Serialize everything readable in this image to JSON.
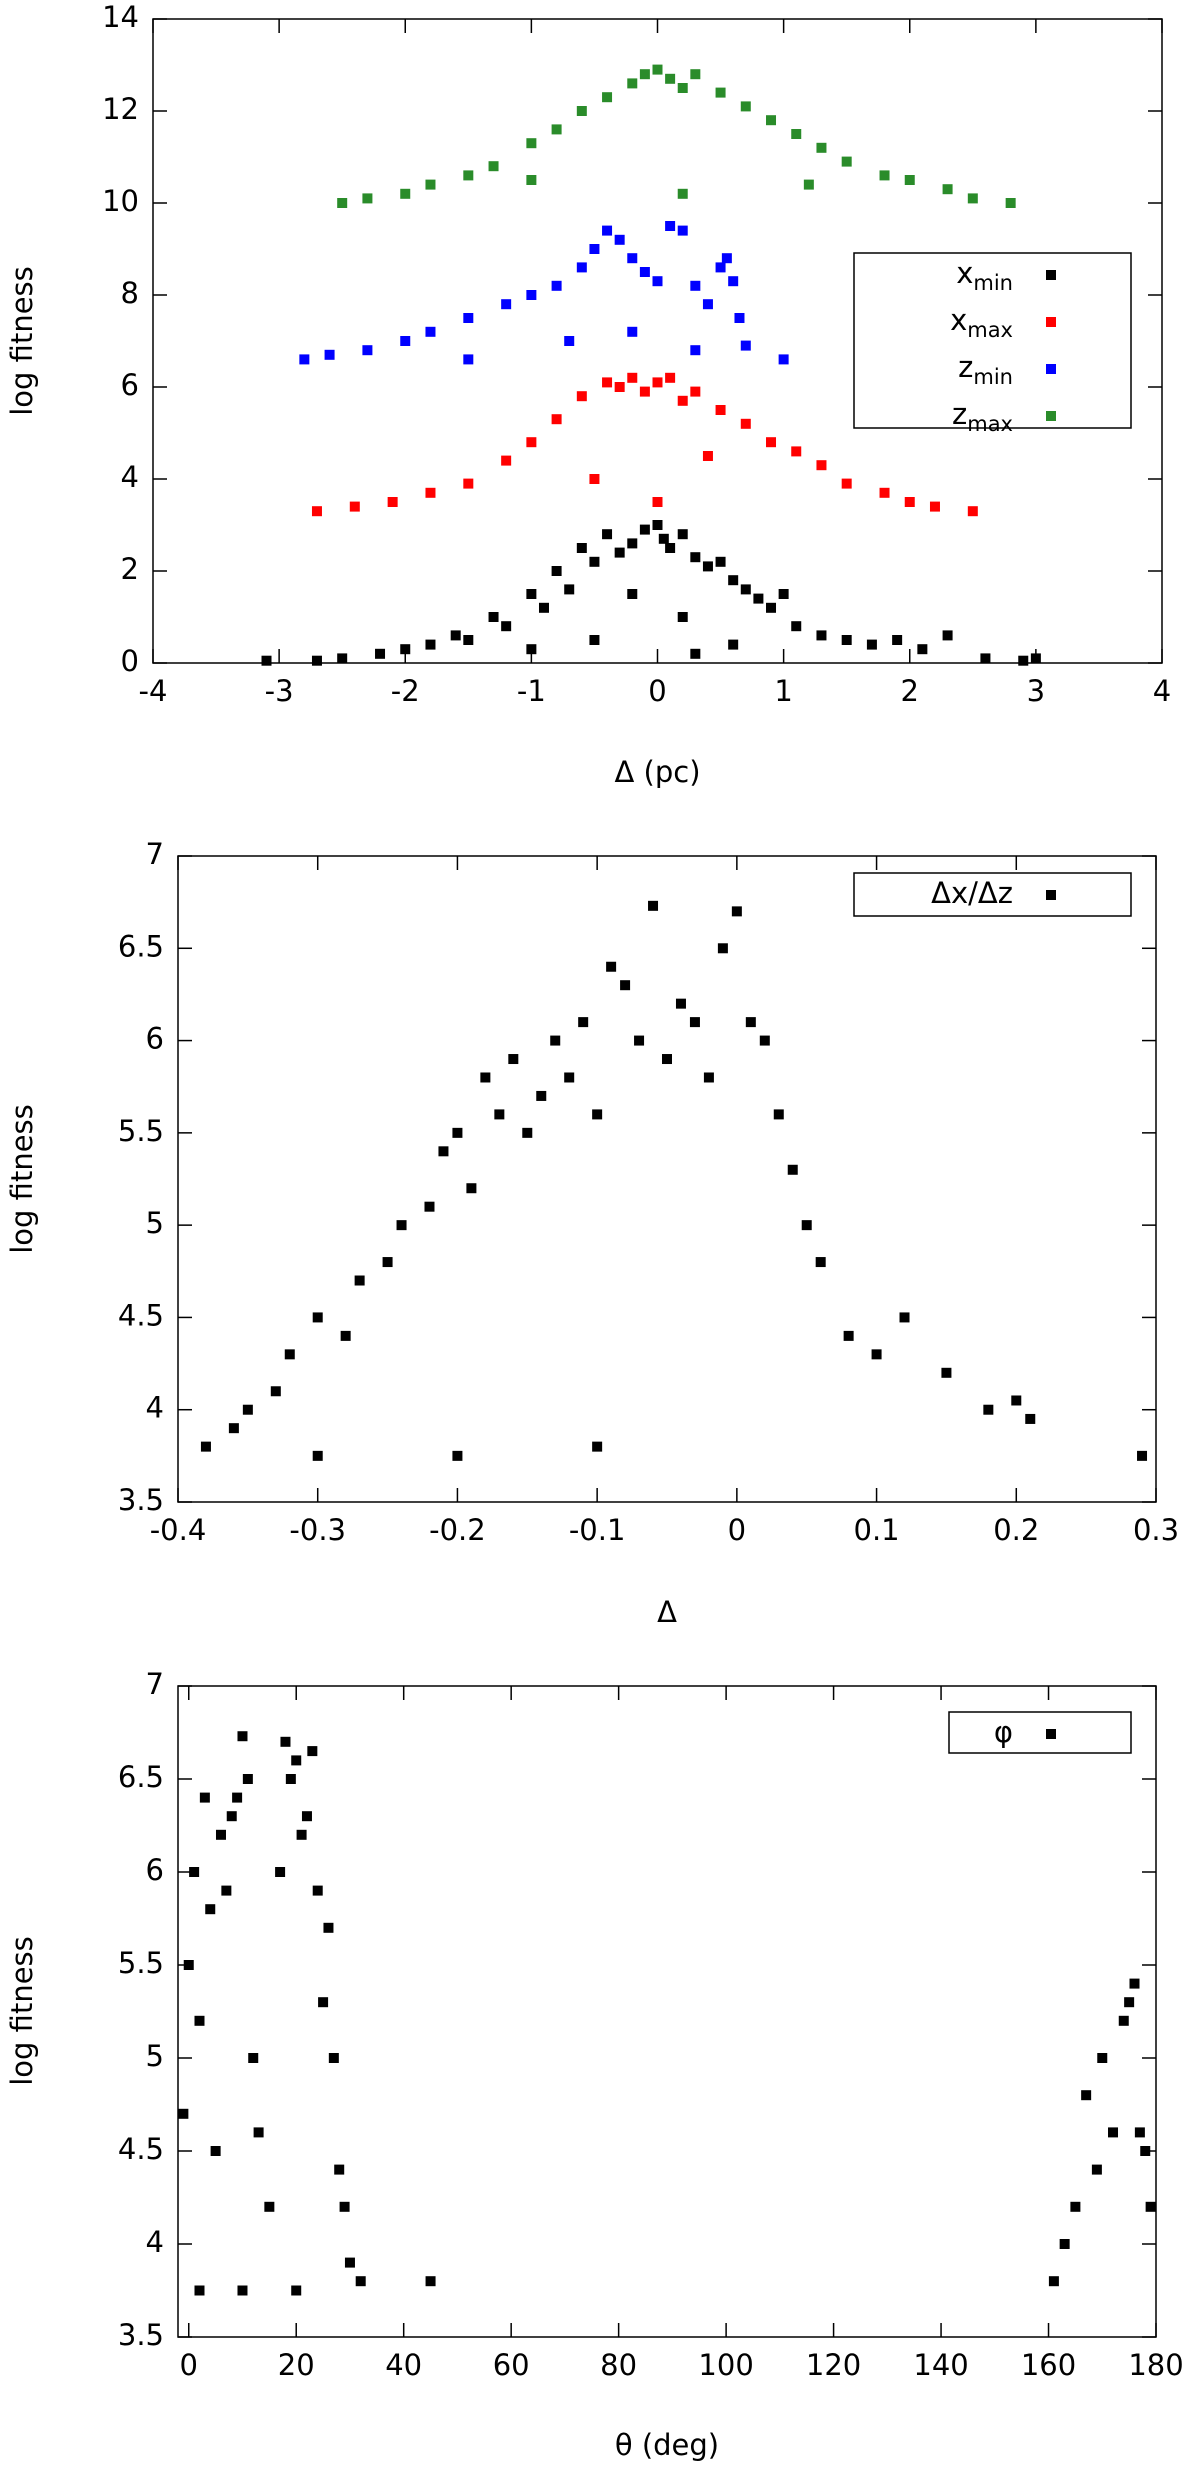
{
  "chart_data": [
    {
      "type": "scatter",
      "x_label": "Δ (pc)",
      "y_label": "log fitness",
      "xlim": [
        -4,
        4
      ],
      "xticks": [
        -4,
        -3,
        -2,
        -1,
        0,
        1,
        2,
        3,
        4
      ],
      "ylim": [
        0,
        14
      ],
      "yticks": [
        0,
        2,
        4,
        6,
        8,
        10,
        12,
        14
      ],
      "grid": false,
      "legend": "right",
      "series": [
        {
          "name": "xmin",
          "color": "#000000",
          "x": [
            -3.1,
            -2.7,
            -2.5,
            -2.2,
            -2.0,
            -1.8,
            -1.6,
            -1.5,
            -1.3,
            -1.2,
            -1.0,
            -0.9,
            -0.8,
            -0.7,
            -0.6,
            -0.5,
            -0.4,
            -0.3,
            -0.2,
            -0.1,
            0,
            0.05,
            0.1,
            0.2,
            0.3,
            0.4,
            0.5,
            0.6,
            0.7,
            0.8,
            0.9,
            1.0,
            1.1,
            1.3,
            1.5,
            1.7,
            1.9,
            2.1,
            2.3,
            2.6,
            2.9,
            3.0,
            -0.5,
            0.2,
            -1.0,
            0.6,
            -0.2,
            0.3
          ],
          "values": [
            0.05,
            0.05,
            0.1,
            0.2,
            0.3,
            0.4,
            0.6,
            0.5,
            1.0,
            0.8,
            1.5,
            1.2,
            2.0,
            1.6,
            2.5,
            2.2,
            2.8,
            2.4,
            2.6,
            2.9,
            3.0,
            2.7,
            2.5,
            2.8,
            2.3,
            2.1,
            2.2,
            1.8,
            1.6,
            1.4,
            1.2,
            1.5,
            0.8,
            0.6,
            0.5,
            0.4,
            0.5,
            0.3,
            0.6,
            0.1,
            0.05,
            0.1,
            0.5,
            1.0,
            0.3,
            0.4,
            1.5,
            0.2
          ]
        },
        {
          "name": "xmax",
          "color": "#ff0000",
          "x": [
            -2.7,
            -2.4,
            -2.1,
            -1.8,
            -1.5,
            -1.2,
            -1.0,
            -0.8,
            -0.6,
            -0.4,
            -0.3,
            -0.2,
            -0.1,
            0,
            0.1,
            0.2,
            0.3,
            0.5,
            0.7,
            0.9,
            1.1,
            1.3,
            1.5,
            1.8,
            2.0,
            2.2,
            2.5,
            -0.5,
            0.0,
            0.4
          ],
          "values": [
            3.3,
            3.4,
            3.5,
            3.7,
            3.9,
            4.4,
            4.8,
            5.3,
            5.8,
            6.1,
            6.0,
            6.2,
            5.9,
            6.1,
            6.2,
            5.7,
            5.9,
            5.5,
            5.2,
            4.8,
            4.6,
            4.3,
            3.9,
            3.7,
            3.5,
            3.4,
            3.3,
            4.0,
            3.5,
            4.5
          ]
        },
        {
          "name": "zmin",
          "color": "#0000ff",
          "x": [
            -2.8,
            -2.6,
            -2.3,
            -2.0,
            -1.8,
            -1.5,
            -1.2,
            -1.0,
            -0.8,
            -0.6,
            -0.5,
            -0.4,
            -0.3,
            -0.2,
            -0.1,
            0,
            0.1,
            0.2,
            0.3,
            0.4,
            0.5,
            0.55,
            0.6,
            0.65,
            0.7,
            1.0,
            -1.5,
            -0.7,
            -0.2,
            0.3
          ],
          "values": [
            6.6,
            6.7,
            6.8,
            7.0,
            7.2,
            7.5,
            7.8,
            8.0,
            8.2,
            8.6,
            9.0,
            9.4,
            9.2,
            8.8,
            8.5,
            8.3,
            9.5,
            9.4,
            8.2,
            7.8,
            8.6,
            8.8,
            8.3,
            7.5,
            6.9,
            6.6,
            6.6,
            7.0,
            7.2,
            6.8
          ]
        },
        {
          "name": "zmax",
          "color": "#2a8c2a",
          "x": [
            -2.5,
            -2.3,
            -2.0,
            -1.8,
            -1.5,
            -1.3,
            -1.0,
            -0.8,
            -0.6,
            -0.4,
            -0.2,
            -0.1,
            0,
            0.1,
            0.2,
            0.3,
            0.5,
            0.7,
            0.9,
            1.1,
            1.3,
            1.5,
            1.8,
            2.0,
            2.3,
            2.5,
            2.8,
            -1.0,
            0.2,
            1.2
          ],
          "values": [
            10.0,
            10.1,
            10.2,
            10.4,
            10.6,
            10.8,
            11.3,
            11.6,
            12.0,
            12.3,
            12.6,
            12.8,
            12.9,
            12.7,
            12.5,
            12.8,
            12.4,
            12.1,
            11.8,
            11.5,
            11.2,
            10.9,
            10.6,
            10.5,
            10.3,
            10.1,
            10.0,
            10.5,
            10.2,
            10.4
          ]
        }
      ]
    },
    {
      "type": "scatter",
      "x_label": "Δ",
      "y_label": "log fitness",
      "xlim": [
        -0.4,
        0.3
      ],
      "xticks": [
        -0.4,
        -0.3,
        -0.2,
        -0.1,
        0,
        0.1,
        0.2,
        0.3
      ],
      "ylim": [
        3.5,
        7
      ],
      "yticks": [
        3.5,
        4,
        4.5,
        5,
        5.5,
        6,
        6.5,
        7
      ],
      "grid": false,
      "legend": "upper right",
      "series": [
        {
          "name": "Δx/Δz",
          "color": "#000000",
          "x": [
            -0.38,
            -0.36,
            -0.35,
            -0.33,
            -0.32,
            -0.3,
            -0.28,
            -0.27,
            -0.25,
            -0.24,
            -0.22,
            -0.21,
            -0.2,
            -0.19,
            -0.18,
            -0.17,
            -0.16,
            -0.15,
            -0.14,
            -0.13,
            -0.12,
            -0.11,
            -0.1,
            -0.09,
            -0.08,
            -0.07,
            -0.06,
            -0.05,
            -0.04,
            -0.03,
            -0.02,
            -0.01,
            0.0,
            0.01,
            0.02,
            0.03,
            0.04,
            0.05,
            0.06,
            0.08,
            0.1,
            0.12,
            0.15,
            0.18,
            0.2,
            0.21,
            0.29,
            -0.3,
            -0.2,
            -0.1
          ],
          "values": [
            3.8,
            3.9,
            4.0,
            4.1,
            4.3,
            4.5,
            4.4,
            4.7,
            4.8,
            5.0,
            5.1,
            5.4,
            5.5,
            5.2,
            5.8,
            5.6,
            5.9,
            5.5,
            5.7,
            6.0,
            5.8,
            6.1,
            5.6,
            6.4,
            6.3,
            6.0,
            6.73,
            5.9,
            6.2,
            6.1,
            5.8,
            6.5,
            6.7,
            6.1,
            6.0,
            5.6,
            5.3,
            5.0,
            4.8,
            4.4,
            4.3,
            4.5,
            4.2,
            4.0,
            4.05,
            3.95,
            3.75,
            3.75,
            3.75,
            3.8
          ]
        }
      ]
    },
    {
      "type": "scatter",
      "x_label": "θ (deg)",
      "y_label": "log fitness",
      "xlim": [
        -2,
        180
      ],
      "xticks": [
        0,
        20,
        40,
        60,
        80,
        100,
        120,
        140,
        160,
        180
      ],
      "ylim": [
        3.5,
        7
      ],
      "yticks": [
        3.5,
        4,
        4.5,
        5,
        5.5,
        6,
        6.5,
        7
      ],
      "grid": false,
      "legend": "upper right",
      "series": [
        {
          "name": "φ",
          "color": "#000000",
          "x": [
            -1,
            0,
            1,
            2,
            3,
            4,
            5,
            6,
            7,
            8,
            9,
            10,
            11,
            12,
            13,
            15,
            17,
            18,
            19,
            20,
            21,
            22,
            23,
            24,
            25,
            26,
            27,
            28,
            29,
            30,
            32,
            45,
            161,
            163,
            165,
            167,
            169,
            170,
            172,
            174,
            175,
            176,
            177,
            178,
            179,
            2,
            10,
            20
          ],
          "values": [
            4.7,
            5.5,
            6.0,
            5.2,
            6.4,
            5.8,
            4.5,
            6.2,
            5.9,
            6.3,
            6.4,
            6.73,
            6.5,
            5.0,
            4.6,
            4.2,
            6.0,
            6.7,
            6.5,
            6.6,
            6.2,
            6.3,
            6.65,
            5.9,
            5.3,
            5.7,
            5.0,
            4.4,
            4.2,
            3.9,
            3.8,
            3.8,
            3.8,
            4.0,
            4.2,
            4.8,
            4.4,
            5.0,
            4.6,
            5.2,
            5.3,
            5.4,
            4.6,
            4.5,
            4.2,
            3.75,
            3.75,
            3.75
          ]
        }
      ]
    }
  ]
}
